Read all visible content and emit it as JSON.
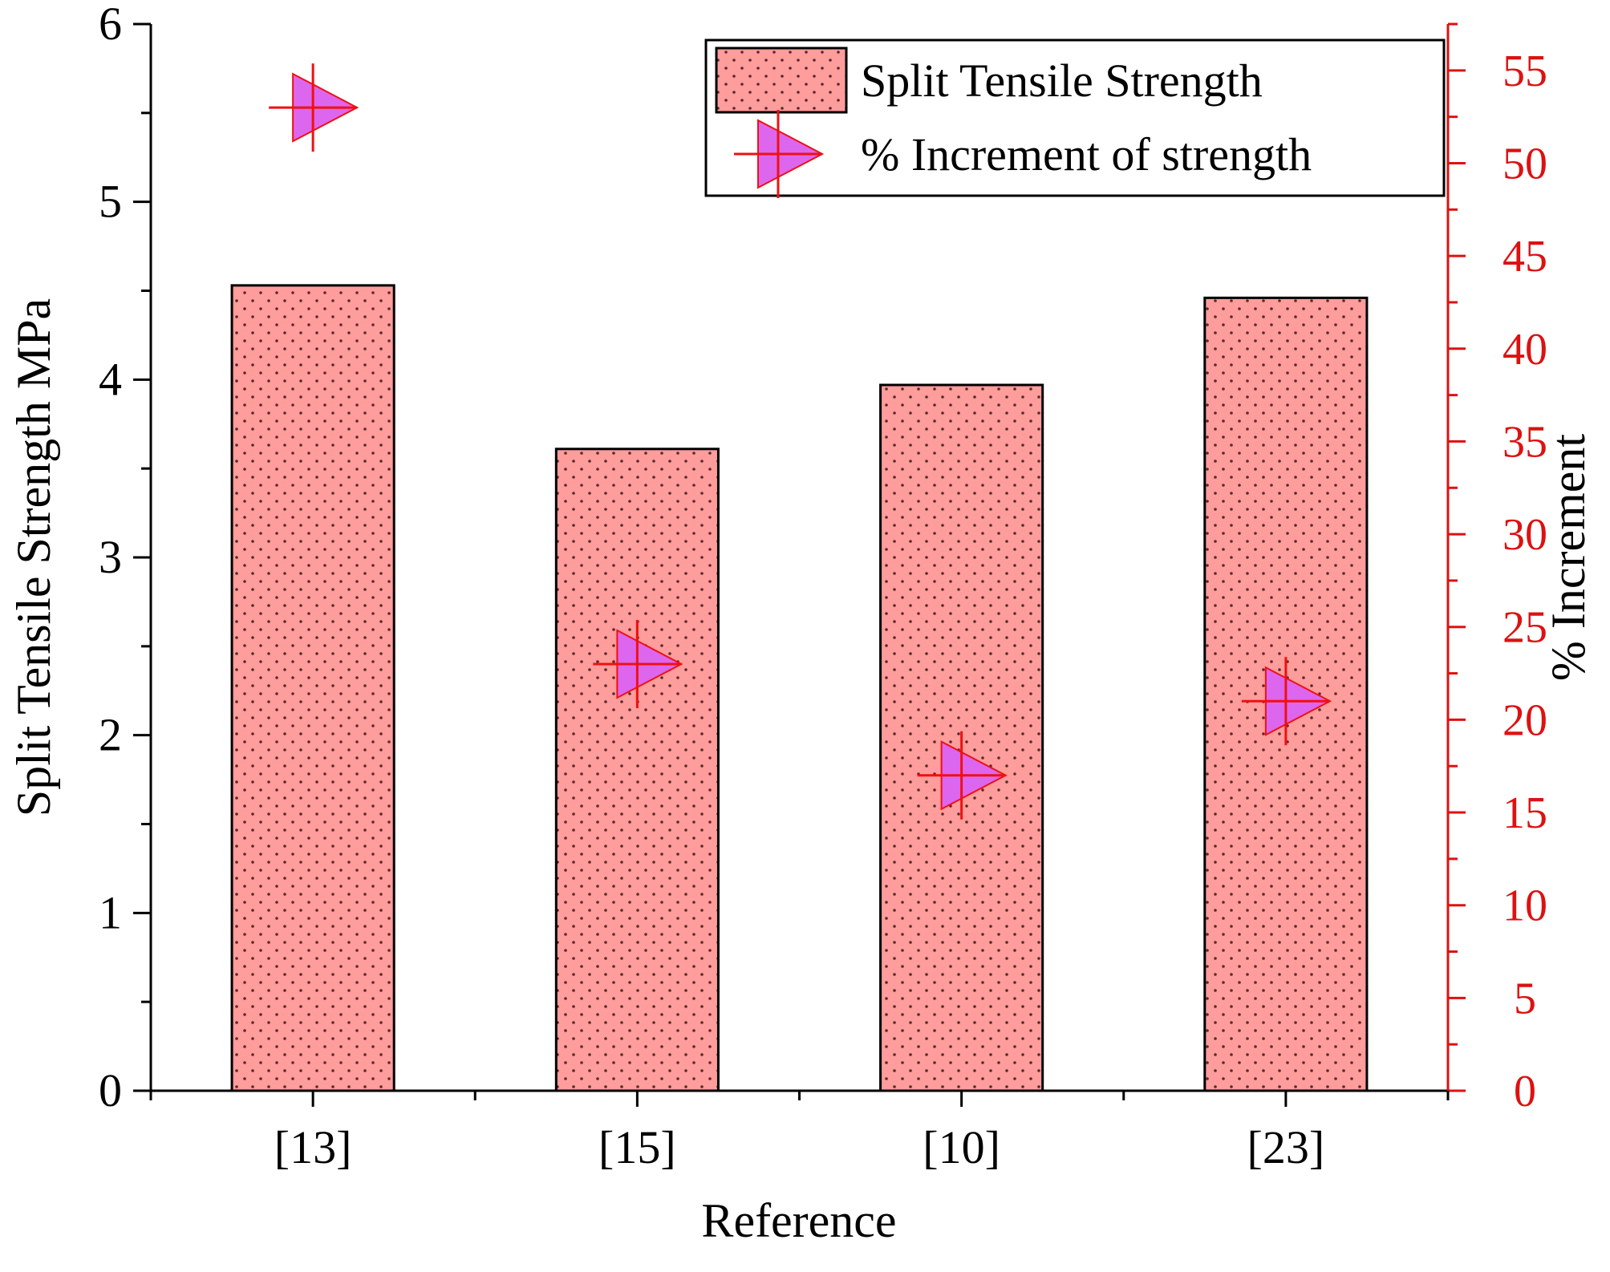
{
  "chart_data": {
    "type": "bar",
    "xlabel": "Reference",
    "categories": [
      "[13]",
      "[15]",
      "[10]",
      "[23]"
    ],
    "series": [
      {
        "name": "Split Tensile Strength",
        "type": "bar",
        "axis": "left",
        "values": [
          4.53,
          3.61,
          3.97,
          4.46
        ]
      },
      {
        "name": "% Increment of strength",
        "type": "scatter",
        "axis": "right",
        "values": [
          53,
          23,
          17,
          21
        ]
      }
    ],
    "y_left": {
      "label": "Split Tensile Strength MPa",
      "lim": [
        0,
        6
      ],
      "ticks": [
        0,
        1,
        2,
        3,
        4,
        5,
        6
      ]
    },
    "y_right": {
      "label": "% Increment",
      "lim": [
        0,
        57.5
      ],
      "ticks": [
        0,
        5,
        10,
        15,
        20,
        25,
        30,
        35,
        40,
        45,
        50,
        55
      ]
    },
    "legend_position": "top-right",
    "grid": false,
    "colors": {
      "bar_fill": "#ff9c9c",
      "bar_dots": "#5a2a2a",
      "marker_fill": "#dd66ee",
      "marker_stroke": "#ee1111",
      "right_axis": "#dd1111",
      "axis": "#000000"
    }
  }
}
